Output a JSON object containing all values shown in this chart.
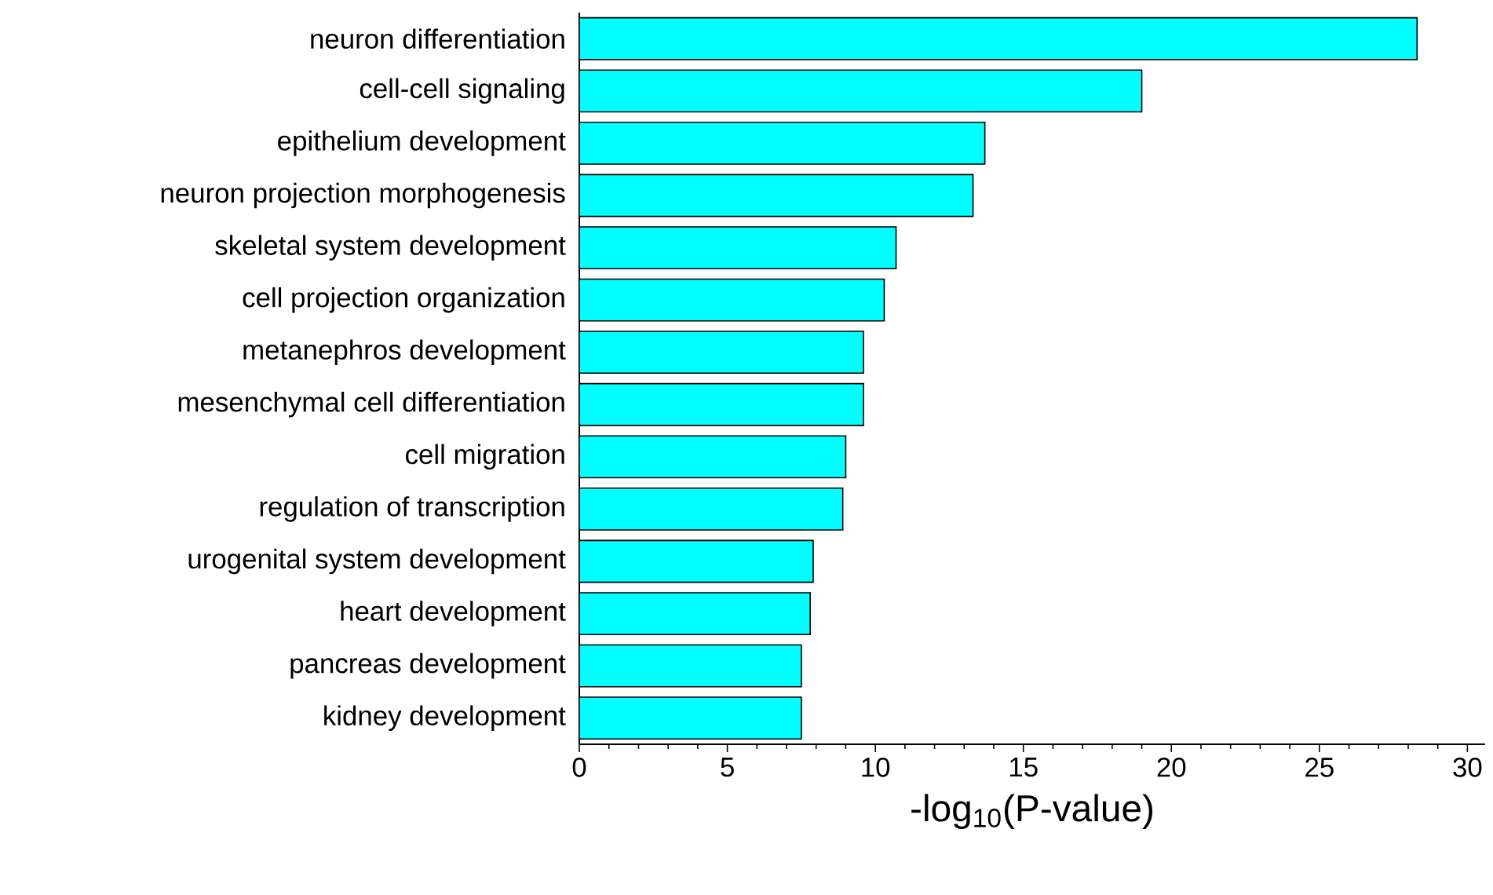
{
  "chart_data": {
    "type": "bar",
    "orientation": "horizontal",
    "xlabel": "-log$_{10}$(P-value)",
    "categories": [
      "neuron differentiation",
      "cell-cell signaling",
      "epithelium development",
      "neuron projection morphogenesis",
      "skeletal system development",
      "cell projection organization",
      "metanephros development",
      "mesenchymal cell differentiation",
      "cell migration",
      "regulation of transcription",
      "urogenital system development",
      "heart development",
      "pancreas development",
      "kidney development"
    ],
    "values": [
      28.3,
      19.0,
      13.7,
      13.3,
      10.7,
      10.3,
      9.6,
      9.6,
      9.0,
      8.9,
      7.9,
      7.8,
      7.5,
      7.5
    ],
    "color": "#00ffff",
    "xlim": [
      0,
      30.6
    ],
    "xticks": [
      0,
      5,
      10,
      15,
      20,
      25,
      30
    ],
    "grid": false
  }
}
